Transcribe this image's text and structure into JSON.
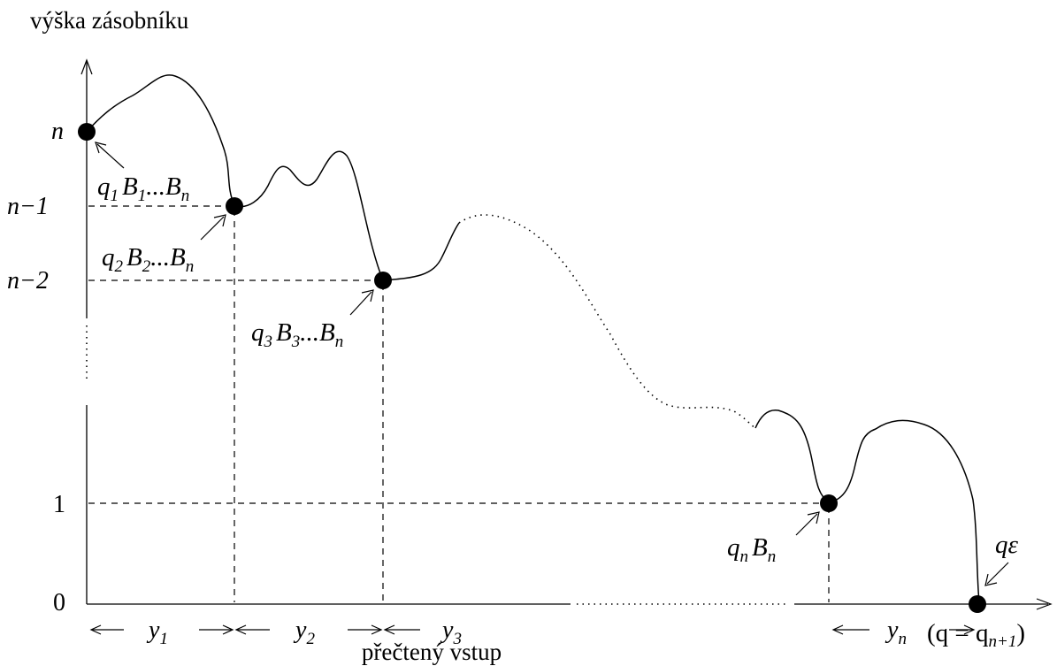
{
  "axes": {
    "y_title": "výška zásobníku",
    "x_title": "přečtený vstup",
    "y_ticks": [
      "n",
      "n−1",
      "n−2",
      "1",
      "0"
    ]
  },
  "configs": [
    {
      "main": "q",
      "sub1": "1",
      "mid": "B",
      "sub2": "1",
      "dots": "...",
      "end": "B",
      "sub3": "n"
    },
    {
      "main": "q",
      "sub1": "2",
      "mid": "B",
      "sub2": "2",
      "dots": "...",
      "end": "B",
      "sub3": "n"
    },
    {
      "main": "q",
      "sub1": "3",
      "mid": "B",
      "sub2": "3",
      "dots": "...",
      "end": "B",
      "sub3": "n"
    }
  ],
  "config_last": {
    "main": "q",
    "sub1": "n",
    "mid": "B",
    "sub2": "n"
  },
  "final_state": {
    "label": "qε",
    "eq": "(q = q",
    "eq_sub": "n+1",
    "eq_close": ")"
  },
  "segments": [
    {
      "name": "y",
      "sub": "1"
    },
    {
      "name": "y",
      "sub": "2"
    },
    {
      "name": "y",
      "sub": "3"
    },
    {
      "name": "y",
      "sub": "n"
    }
  ]
}
